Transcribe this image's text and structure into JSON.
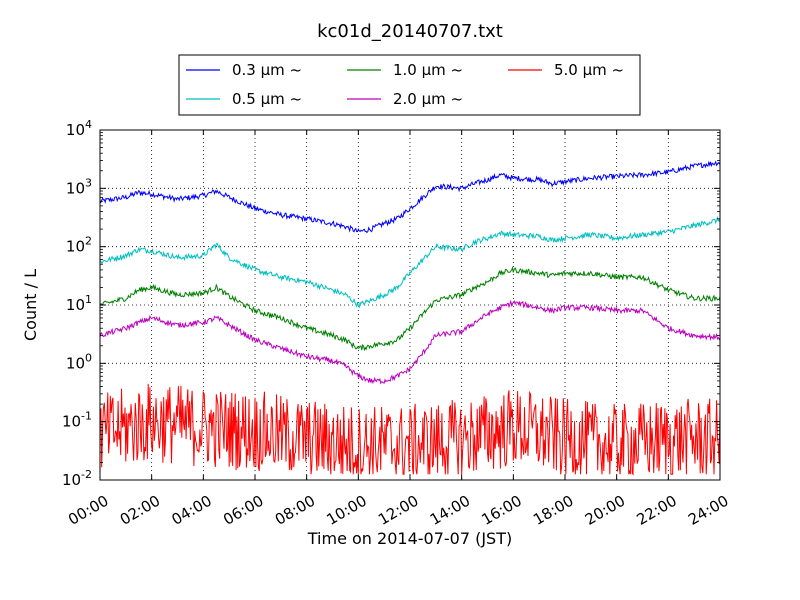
{
  "chart_data": {
    "type": "line",
    "title": "kc01d_20140707.txt",
    "xlabel": "Time on 2014-07-07 (JST)",
    "ylabel": "Count / L",
    "x_ticks": [
      "00:00",
      "02:00",
      "04:00",
      "06:00",
      "08:00",
      "10:00",
      "12:00",
      "14:00",
      "16:00",
      "18:00",
      "20:00",
      "22:00",
      "24:00"
    ],
    "y_ticks": [
      {
        "base": "10",
        "exp": "-2"
      },
      {
        "base": "10",
        "exp": "-1"
      },
      {
        "base": "10",
        "exp": "0"
      },
      {
        "base": "10",
        "exp": "1"
      },
      {
        "base": "10",
        "exp": "2"
      },
      {
        "base": "10",
        "exp": "3"
      },
      {
        "base": "10",
        "exp": "4"
      }
    ],
    "yscale": "log",
    "ylim": [
      0.01,
      10000
    ],
    "xlim_hours": [
      0,
      24
    ],
    "grid": true,
    "legend_position": "top-center",
    "x_unit": "hours",
    "series": [
      {
        "name": "0.3 μm ~",
        "color": "#0000ff",
        "x": [
          0,
          1,
          1.5,
          2,
          3,
          4,
          4.5,
          5,
          6,
          7,
          8,
          9,
          9.5,
          10,
          10.5,
          11,
          11.5,
          12,
          12.5,
          13,
          14,
          14.5,
          15,
          15.5,
          16,
          17,
          17.5,
          18,
          19,
          20,
          21,
          22,
          23,
          24
        ],
        "y": [
          600,
          700,
          850,
          800,
          650,
          750,
          900,
          700,
          450,
          350,
          300,
          250,
          220,
          180,
          200,
          250,
          300,
          450,
          700,
          1100,
          1000,
          1200,
          1400,
          1700,
          1500,
          1400,
          1200,
          1300,
          1500,
          1600,
          1700,
          1900,
          2400,
          2800
        ]
      },
      {
        "name": "0.5 μm ~",
        "color": "#00bfbf",
        "x": [
          0,
          1,
          1.5,
          2,
          3,
          4,
          4.5,
          5,
          6,
          7,
          8,
          9,
          9.5,
          10,
          10.5,
          11,
          11.5,
          12,
          12.5,
          13,
          14,
          14.5,
          15,
          15.5,
          16,
          17,
          17.5,
          18,
          19,
          20,
          21,
          22,
          23,
          24
        ],
        "y": [
          55,
          70,
          90,
          85,
          65,
          70,
          110,
          65,
          40,
          30,
          25,
          18,
          15,
          10,
          12,
          15,
          20,
          35,
          60,
          100,
          90,
          120,
          140,
          170,
          160,
          150,
          130,
          140,
          160,
          140,
          160,
          180,
          230,
          290
        ]
      },
      {
        "name": "1.0 μm ~",
        "color": "#008000",
        "x": [
          0,
          1,
          1.5,
          2,
          3,
          4,
          4.5,
          5,
          6,
          7,
          8,
          9,
          9.5,
          10,
          10.5,
          11,
          11.5,
          12,
          12.5,
          13,
          14,
          14.5,
          15,
          15.5,
          16,
          17,
          17.5,
          18,
          19,
          20,
          21,
          22,
          23,
          24
        ],
        "y": [
          10,
          13,
          18,
          20,
          15,
          16,
          20,
          14,
          8,
          6,
          4,
          3,
          2.5,
          1.8,
          2.0,
          2.2,
          2.5,
          4,
          7,
          12,
          15,
          20,
          25,
          35,
          40,
          35,
          32,
          35,
          35,
          30,
          30,
          18,
          13,
          13
        ]
      },
      {
        "name": "2.0 μm ~",
        "color": "#bf00bf",
        "x": [
          0,
          1,
          1.5,
          2,
          3,
          4,
          4.5,
          5,
          6,
          7,
          8,
          9,
          9.5,
          10,
          10.5,
          11,
          11.5,
          12,
          12.5,
          13,
          14,
          14.5,
          15,
          15.5,
          16,
          17,
          17.5,
          18,
          19,
          20,
          21,
          22,
          23,
          24
        ],
        "y": [
          3,
          4,
          5,
          6,
          4.5,
          5,
          6,
          4.5,
          2.5,
          1.8,
          1.3,
          1.1,
          0.9,
          0.6,
          0.5,
          0.5,
          0.6,
          0.8,
          1.5,
          3,
          3.5,
          5,
          7,
          9,
          11,
          9,
          8,
          9,
          9,
          8,
          8,
          4,
          3,
          2.8
        ]
      },
      {
        "name": "5.0 μm ~",
        "color": "#ff0000",
        "x": [
          0,
          2,
          4,
          6,
          8,
          10,
          12,
          14,
          16,
          18,
          20,
          22,
          24
        ],
        "y": [
          0.06,
          0.1,
          0.08,
          0.07,
          0.05,
          0.04,
          0.04,
          0.05,
          0.08,
          0.05,
          0.04,
          0.05,
          0.05
        ]
      }
    ]
  }
}
